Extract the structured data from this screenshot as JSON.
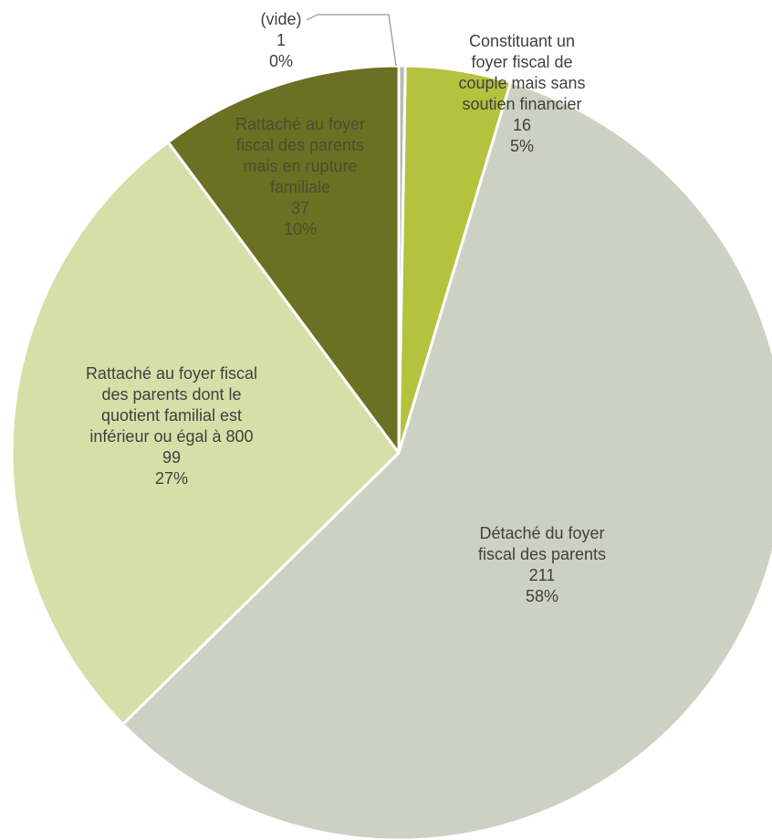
{
  "chart_data": {
    "type": "pie",
    "title": "",
    "start": "top",
    "direction": "clockwise",
    "slices": [
      {
        "name": "(vide)",
        "value": 1,
        "percent": "0%",
        "color": "#b8bcb0",
        "label": [
          "(vide)",
          "1",
          "0%"
        ]
      },
      {
        "name": "Constituant un foyer fiscal de couple mais sans soutien financier",
        "value": 16,
        "percent": "5%",
        "color": "#b5c23d",
        "label": [
          "Constituant un",
          "foyer fiscal de",
          "couple mais sans",
          "soutien financier",
          "16",
          "5%"
        ]
      },
      {
        "name": "Détaché du foyer fiscal des parents",
        "value": 211,
        "percent": "58%",
        "color": "#cdd1c3",
        "label": [
          "Détaché du foyer",
          "fiscal des parents",
          "211",
          "58%"
        ]
      },
      {
        "name": "Rattaché au foyer fiscal des parents dont le quotient familial est inférieur ou égal à 800",
        "value": 99,
        "percent": "27%",
        "color": "#d6dfa8",
        "label": [
          "Rattaché au foyer fiscal",
          "des parents dont le",
          "quotient familial est",
          "inférieur ou égal à 800",
          "99",
          "27%"
        ]
      },
      {
        "name": "Rattaché au foyer fiscal des parents mais en rupture familiale",
        "value": 37,
        "percent": "10%",
        "color": "#6b7022",
        "label": [
          "Rattaché au foyer",
          "fiscal des parents",
          "mais en rupture",
          "familiale",
          "37",
          "10%"
        ]
      }
    ]
  }
}
